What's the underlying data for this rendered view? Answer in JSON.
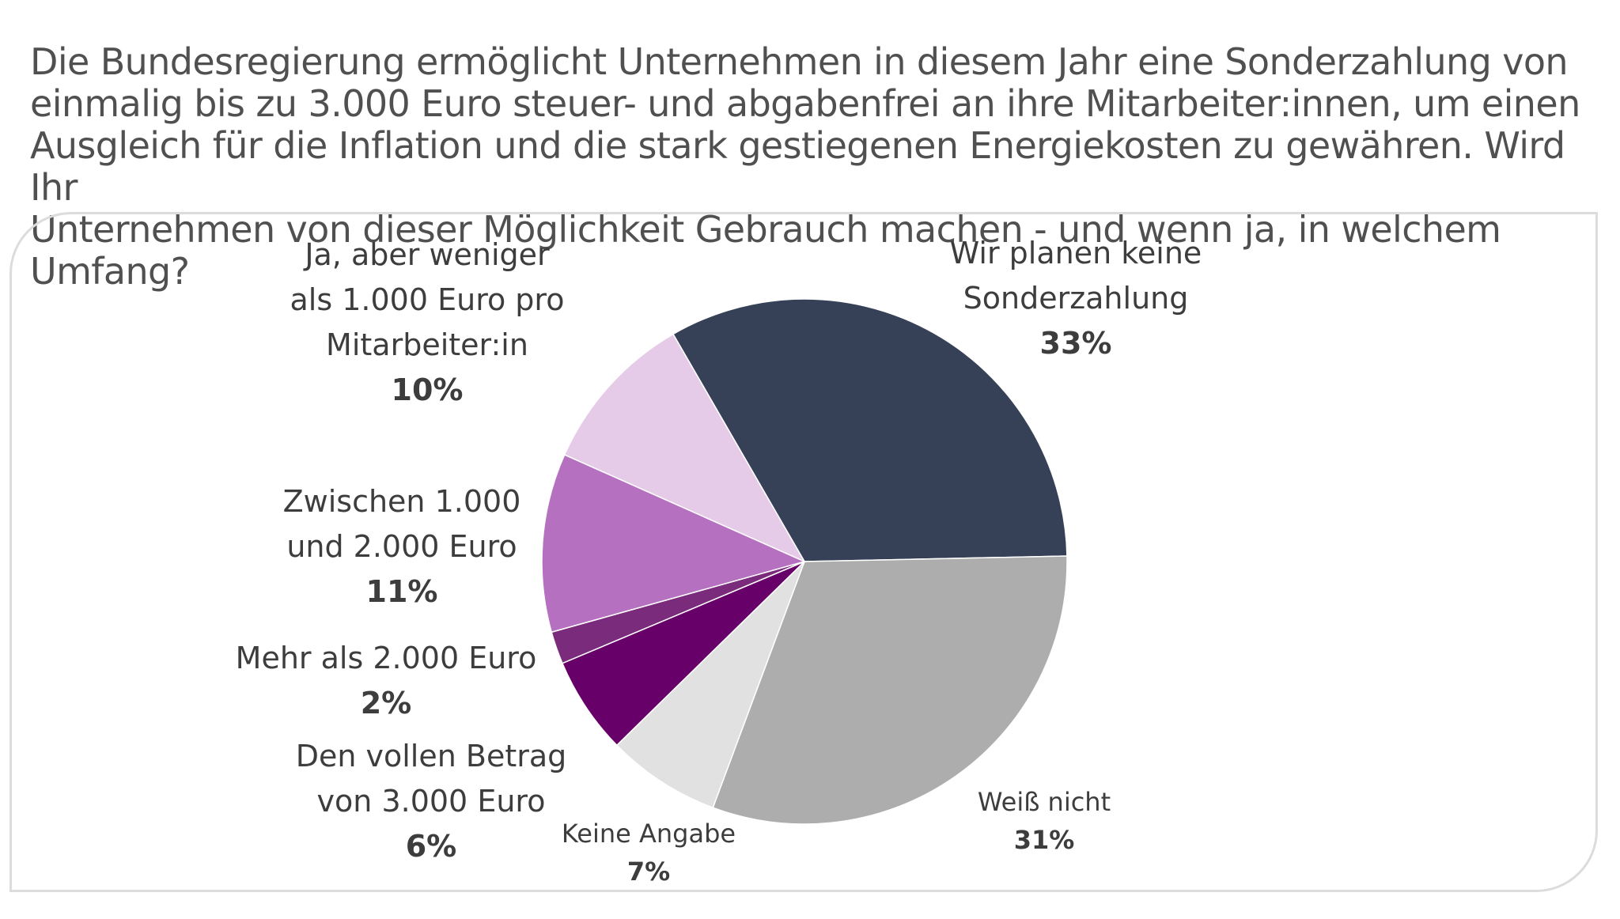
{
  "question": "Die Bundesregierung ermöglicht Unternehmen in diesem Jahr eine Sonderzahlung von\neinmalig bis zu 3.000 Euro steuer- und abgabenfrei an ihre Mitarbeiter:innen, um einen\nAusgleich für die Inflation und die stark gestiegenen Energiekosten zu gewähren. Wird Ihr\nUnternehmen von dieser Möglichkeit Gebrauch machen - und wenn ja, in welchem Umfang?",
  "chart_data": {
    "type": "pie",
    "title": "",
    "slices": [
      {
        "label": "Wir planen keine\nSonderzahlung",
        "value": 33,
        "value_label": "33%",
        "color": "#364056"
      },
      {
        "label": "Weiß nicht",
        "value": 31,
        "value_label": "31%",
        "color": "#adadad"
      },
      {
        "label": "Keine Angabe",
        "value": 7,
        "value_label": "7%",
        "color": "#e1e1e1"
      },
      {
        "label": "Den vollen Betrag\nvon 3.000 Euro",
        "value": 6,
        "value_label": "6%",
        "color": "#670068"
      },
      {
        "label": "Mehr als 2.000 Euro",
        "value": 2,
        "value_label": "2%",
        "color": "#7b2b7c"
      },
      {
        "label": "Zwischen 1.000\nund 2.000 Euro",
        "value": 11,
        "value_label": "11%",
        "color": "#b570c0"
      },
      {
        "label": "Ja, aber weniger\nals 1.000 Euro pro\nMitarbeiter:in",
        "value": 10,
        "value_label": "10%",
        "color": "#e5cbe8"
      }
    ]
  }
}
